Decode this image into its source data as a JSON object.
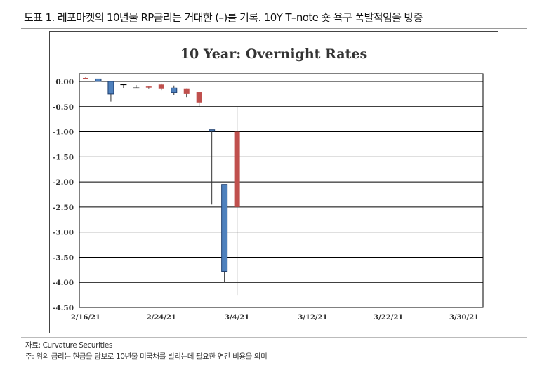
{
  "header": {
    "title": "도표 1. 레포마켓의 10년물 RP금리는 거대한 (–)를 기록. 10Y T–note 숏 욕구 폭발적임을 방증"
  },
  "footer": {
    "source": "자료: Curvature Securities",
    "note": "주: 위의 금리는 현금을 담보로 10년물 미국채를 빌리는데 필요한 연간 비용을 의미"
  },
  "chart_data": {
    "type": "candlestick",
    "title": "10 Year:  Overnight Rates",
    "xlabel": "",
    "ylabel": "",
    "ylim": [
      -4.5,
      0.15
    ],
    "yticks": [
      "0.00",
      "-0.50",
      "-1.00",
      "-1.50",
      "-2.00",
      "-2.50",
      "-3.00",
      "-3.50",
      "-4.00",
      "-4.50"
    ],
    "ytick_values": [
      0,
      -0.5,
      -1,
      -1.5,
      -2,
      -2.5,
      -3,
      -3.5,
      -4,
      -4.5
    ],
    "xticks": [
      "2/16/21",
      "2/24/21",
      "3/4/21",
      "3/12/21",
      "3/22/21",
      "3/30/21"
    ],
    "xtick_index": [
      0,
      6,
      12,
      18,
      24,
      30
    ],
    "slots": 32,
    "grid": true,
    "colors": {
      "up": "#4f81bd",
      "down": "#c0504d",
      "flat": "#000000"
    },
    "candles": [
      {
        "date": "2/16/21",
        "index": 0,
        "body_top": 0.07,
        "body_bottom": 0.06,
        "high": 0.08,
        "low": 0.05,
        "color": "down"
      },
      {
        "date": "2/17/21",
        "index": 1,
        "body_top": 0.05,
        "body_bottom": 0.0,
        "high": 0.05,
        "low": 0.0,
        "color": "up"
      },
      {
        "date": "2/18/21",
        "index": 2,
        "body_top": 0.0,
        "body_bottom": -0.25,
        "high": 0.0,
        "low": -0.4,
        "color": "up"
      },
      {
        "date": "2/19/21",
        "index": 3,
        "body_top": -0.05,
        "body_bottom": -0.06,
        "high": -0.05,
        "low": -0.14,
        "color": "flat"
      },
      {
        "date": "2/22/21",
        "index": 4,
        "body_top": -0.12,
        "body_bottom": -0.13,
        "high": -0.07,
        "low": -0.13,
        "color": "flat"
      },
      {
        "date": "2/23/21",
        "index": 5,
        "body_top": -0.1,
        "body_bottom": -0.12,
        "high": -0.1,
        "low": -0.15,
        "color": "down"
      },
      {
        "date": "2/24/21",
        "index": 6,
        "body_top": -0.06,
        "body_bottom": -0.15,
        "high": -0.04,
        "low": -0.17,
        "color": "down"
      },
      {
        "date": "2/25/21",
        "index": 7,
        "body_top": -0.13,
        "body_bottom": -0.22,
        "high": -0.08,
        "low": -0.27,
        "color": "up"
      },
      {
        "date": "2/26/21",
        "index": 8,
        "body_top": -0.15,
        "body_bottom": -0.25,
        "high": -0.15,
        "low": -0.31,
        "color": "down"
      },
      {
        "date": "3/1/21",
        "index": 9,
        "body_top": -0.21,
        "body_bottom": -0.43,
        "high": -0.21,
        "low": -0.5,
        "color": "down"
      },
      {
        "date": "3/2/21",
        "index": 10,
        "body_top": -0.96,
        "body_bottom": -0.99,
        "high": -0.96,
        "low": -2.45,
        "color": "up"
      },
      {
        "date": "3/3/21",
        "index": 11,
        "body_top": -2.05,
        "body_bottom": -3.78,
        "high": -2.05,
        "low": -4.0,
        "color": "up"
      },
      {
        "date": "3/4/21",
        "index": 12,
        "body_top": -1.0,
        "body_bottom": -2.5,
        "high": -0.5,
        "low": -4.25,
        "color": "down"
      }
    ]
  }
}
